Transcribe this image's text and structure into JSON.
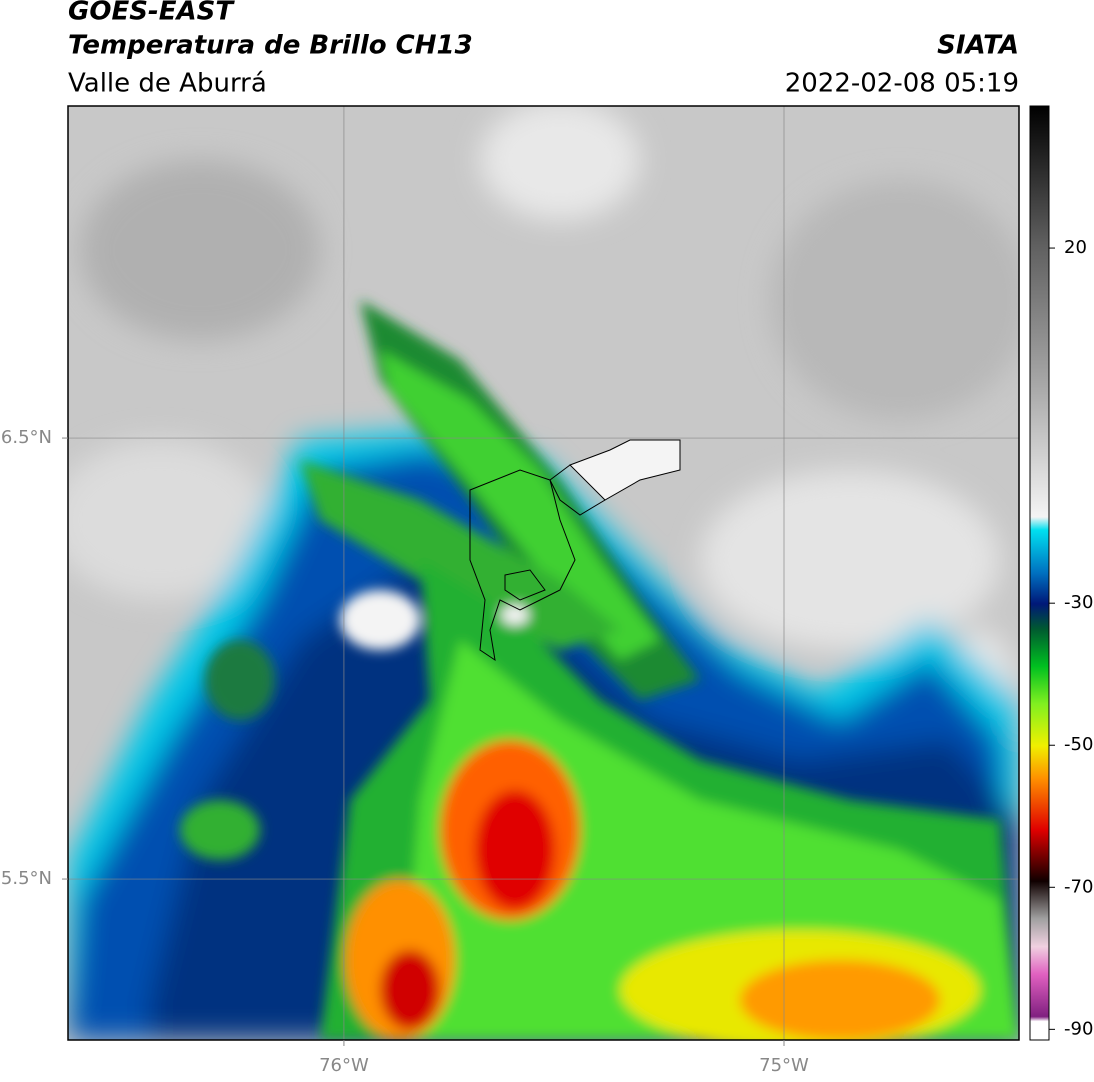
{
  "title": "GOES-EAST",
  "subtitle": "Temperatura de Brillo CH13",
  "region": "Valle de Aburrá",
  "source": "SIATA",
  "datetime": "2022-02-08 05:19",
  "map": {
    "xlim": [
      -76.627,
      -74.466
    ],
    "ylim": [
      5.135,
      7.253
    ],
    "xticks": [
      {
        "value": -76,
        "label": "76°W"
      },
      {
        "value": -75,
        "label": "75°W"
      }
    ],
    "yticks": [
      {
        "value": 6.5,
        "label": "6.5°N"
      },
      {
        "value": 5.5,
        "label": "5.5°N"
      }
    ],
    "grid": true
  },
  "colorbar": {
    "lim": [
      -91.5,
      40
    ],
    "ticks": [
      20,
      -30,
      -50,
      -70,
      -90
    ]
  }
}
